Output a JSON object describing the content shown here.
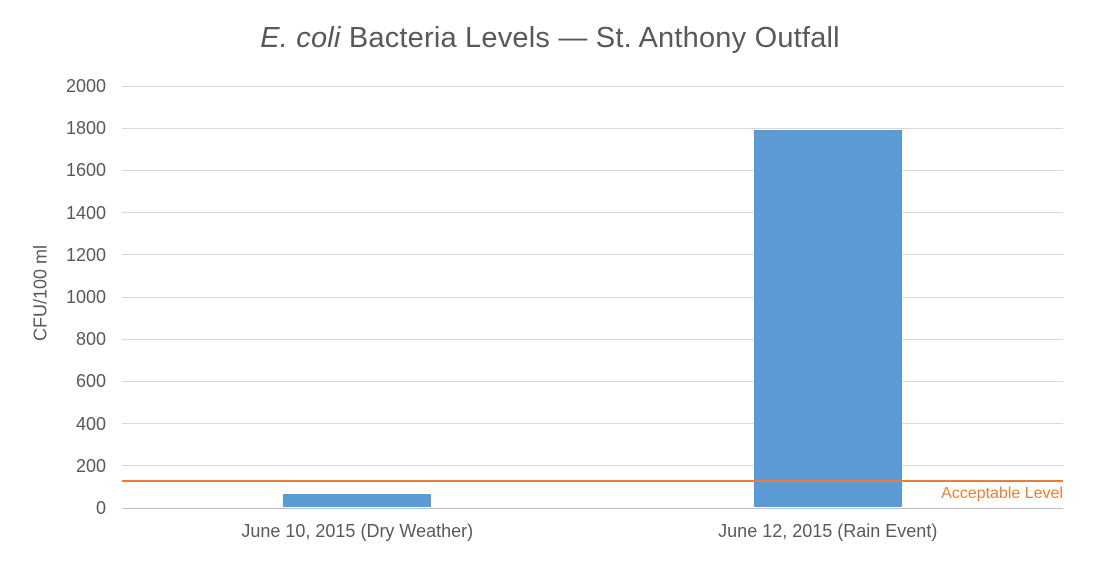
{
  "title": {
    "italic": "E. coli",
    "rest": " Bacteria Levels — St. Anthony Outfall"
  },
  "chart_data": {
    "type": "bar",
    "title": "E. coli Bacteria Levels — St. Anthony Outfall",
    "categories": [
      "June 10, 2015 (Dry Weather)",
      "June 12, 2015 (Rain Event)"
    ],
    "values": [
      65,
      1790
    ],
    "xlabel": "",
    "ylabel": "CFU/100 ml",
    "ylim": [
      0,
      2000
    ],
    "yticks": [
      0,
      200,
      400,
      600,
      800,
      1000,
      1200,
      1400,
      1600,
      1800,
      2000
    ],
    "grid": true,
    "legend": "none",
    "bar_color": "#5B9BD5",
    "threshold": {
      "value": 126,
      "label": "Acceptable Level",
      "color": "#ED7D31"
    }
  },
  "colors": {
    "background": "#FFFFFF",
    "text": "#595959",
    "gridline": "#D9D9D9",
    "axis_line": "#BFBFBF",
    "bar": "#5B9BD5",
    "threshold": "#ED7D31"
  }
}
